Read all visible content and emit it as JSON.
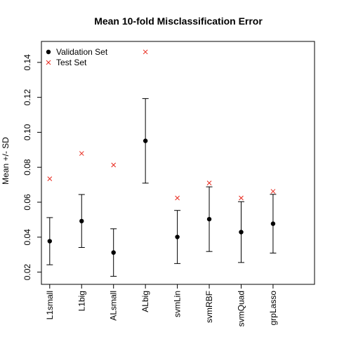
{
  "chart_data": {
    "type": "scatter",
    "title": "Mean 10-fold Misclassification Error",
    "xlabel": "",
    "ylabel": "Mean +/- SD",
    "ylim": [
      0.013,
      0.152
    ],
    "yticks": [
      0.02,
      0.04,
      0.06,
      0.08,
      0.1,
      0.12,
      0.14
    ],
    "ytick_labels": [
      "0.02",
      "0.04",
      "0.06",
      "0.08",
      "0.10",
      "0.12",
      "0.14"
    ],
    "categories": [
      "L1small",
      "L1big",
      "ALsmall",
      "ALbig",
      "svmLin",
      "svmRBF",
      "svmQuad",
      "grpLasso"
    ],
    "legend_position": "top-left",
    "grid": false,
    "series": [
      {
        "name": "Validation Set",
        "marker": "filled-circle",
        "color": "#000000",
        "values": [
          0.0377,
          0.0492,
          0.0312,
          0.0951,
          0.0401,
          0.0503,
          0.0429,
          0.0477
        ],
        "error_low": [
          0.0242,
          0.0341,
          0.0176,
          0.0709,
          0.0249,
          0.0318,
          0.0255,
          0.0309
        ],
        "error_high": [
          0.0512,
          0.0644,
          0.0448,
          0.1193,
          0.0553,
          0.0688,
          0.0603,
          0.0645
        ]
      },
      {
        "name": "Test Set",
        "marker": "cross",
        "color": "#e8281c",
        "values": [
          0.0734,
          0.0879,
          0.0813,
          0.146,
          0.0624,
          0.071,
          0.0624,
          0.0662
        ]
      }
    ]
  }
}
